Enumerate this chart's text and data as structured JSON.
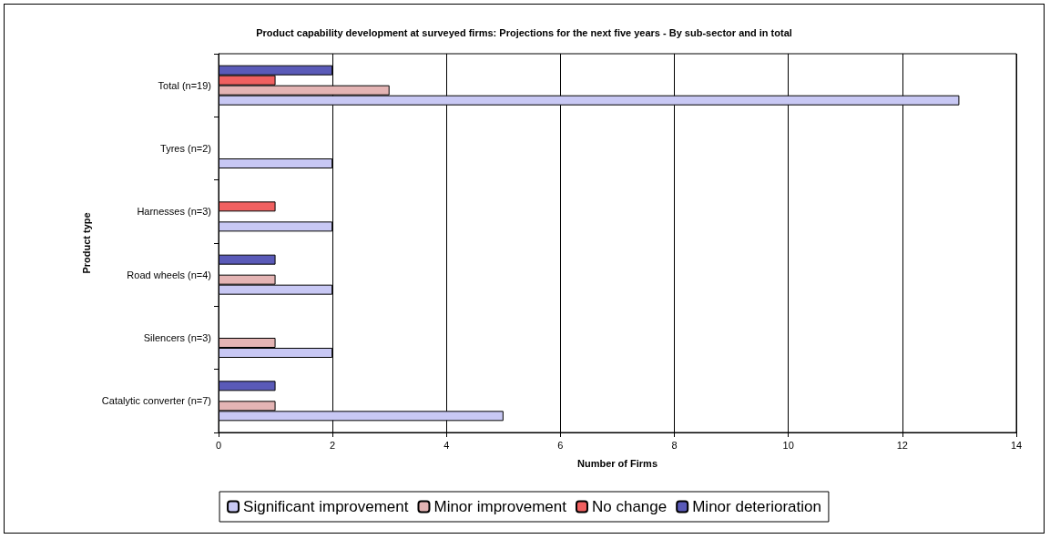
{
  "chart_data": {
    "type": "bar",
    "orientation": "horizontal",
    "title": "Product capability development at surveyed firms: Projections for the next five years - By sub-sector and in total",
    "xlabel": "Number of Firms",
    "ylabel": "Product type",
    "categories": [
      "Total (n=19)",
      "Tyres (n=2)",
      "Harnesses (n=3)",
      "Road wheels (n=4)",
      "Silencers (n=3)",
      "Catalytic converter (n=7)"
    ],
    "series": [
      {
        "name": "Minor deterioration",
        "color": "#5a5ab8",
        "values": [
          2,
          null,
          null,
          1,
          null,
          1
        ]
      },
      {
        "name": "No change",
        "color": "#f06060",
        "values": [
          1,
          null,
          1,
          null,
          null,
          null
        ]
      },
      {
        "name": "Minor improvement",
        "color": "#e4b4b4",
        "values": [
          3,
          null,
          null,
          1,
          1,
          1
        ]
      },
      {
        "name": "Significant improvement",
        "color": "#c8c8f4",
        "values": [
          13,
          2,
          2,
          2,
          2,
          5
        ]
      }
    ],
    "xlim": [
      0,
      14
    ],
    "xticks": [
      0,
      2,
      4,
      6,
      8,
      10,
      12,
      14
    ],
    "grid": "x",
    "legend": "bottom"
  }
}
